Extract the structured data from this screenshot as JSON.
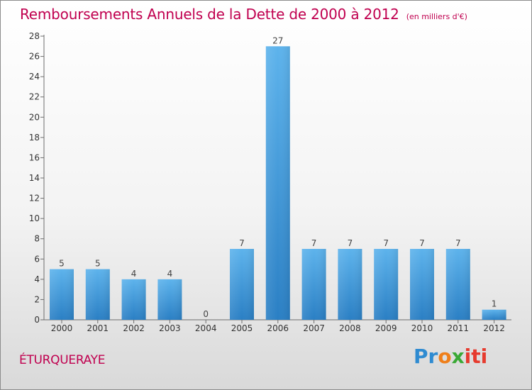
{
  "title": "Remboursements Annuels de la Dette de 2000 à 2012",
  "subtitle": "(en milliers d'€)",
  "town": "ÉTURQUERAYE",
  "logo": {
    "pr": "Pr",
    "o": "o",
    "x": "x",
    "iti": "iti"
  },
  "colors": {
    "accent": "#c0004f",
    "bar": "#4fa8e6",
    "bar_dark": "#2a7fc4"
  },
  "chart_data": {
    "type": "bar",
    "title": "Remboursements Annuels de la Dette de 2000 à 2012",
    "subtitle": "(en milliers d'€)",
    "categories": [
      "2000",
      "2001",
      "2002",
      "2003",
      "2004",
      "2005",
      "2006",
      "2007",
      "2008",
      "2009",
      "2010",
      "2011",
      "2012"
    ],
    "values": [
      5,
      5,
      4,
      4,
      0,
      7,
      27,
      7,
      7,
      7,
      7,
      7,
      1
    ],
    "data_labels": [
      "5",
      "5",
      "4",
      "4",
      "0",
      "7",
      "27",
      "7",
      "7",
      "7",
      "7",
      "7",
      "1"
    ],
    "ylim": [
      0,
      28
    ],
    "yticks": [
      0,
      2,
      4,
      6,
      8,
      10,
      12,
      14,
      16,
      18,
      20,
      22,
      24,
      26,
      28
    ],
    "xlabel": "",
    "ylabel": "",
    "grid": false,
    "legend": "none"
  }
}
